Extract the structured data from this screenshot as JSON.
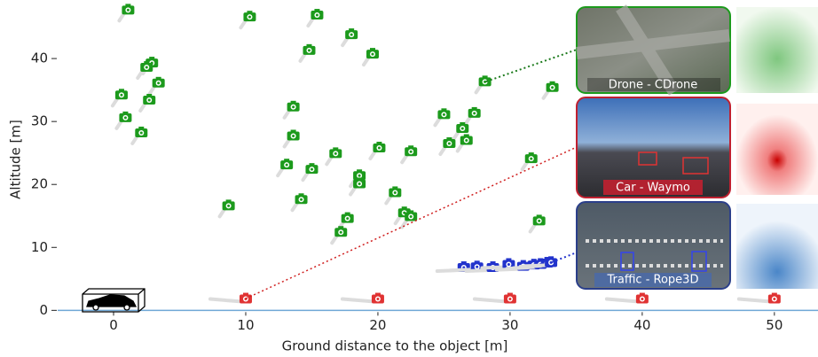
{
  "chart_data": {
    "type": "scatter",
    "x_label": "Ground distance to the object [m]",
    "y_label": "Altitude [m]",
    "xlim": [
      -4.23,
      53.3
    ],
    "ylim": [
      -1.5,
      49.3
    ],
    "xticks": [
      0,
      10,
      20,
      30,
      40,
      50
    ],
    "yticks": [
      0,
      10,
      20,
      30,
      40
    ],
    "series": [
      {
        "color": "#1c9a1c",
        "x": [
          1.1,
          10.3,
          15.4,
          18.0,
          14.8,
          19.6,
          2.9,
          2.5,
          3.4,
          0.6,
          2.7,
          0.9,
          2.1,
          28.1,
          33.2,
          13.6,
          25.0,
          27.3,
          26.4,
          13.6,
          26.7,
          25.4,
          20.1,
          22.5,
          16.8,
          31.6,
          13.1,
          15.0,
          18.6,
          18.6,
          21.3,
          14.2,
          8.7,
          22.0,
          22.5,
          17.7,
          32.2,
          17.2
        ],
        "values": [
          47.7,
          46.6,
          46.9,
          43.8,
          41.3,
          40.7,
          39.3,
          38.6,
          36.1,
          34.2,
          33.4,
          30.6,
          28.2,
          36.3,
          35.4,
          32.3,
          31.1,
          31.3,
          28.9,
          27.7,
          27.0,
          26.5,
          25.8,
          25.2,
          24.9,
          24.1,
          23.1,
          22.4,
          21.4,
          20.1,
          18.7,
          17.6,
          16.6,
          15.5,
          14.9,
          14.6,
          14.2,
          12.4
        ]
      },
      {
        "color": "#e03333",
        "x": [
          10,
          20,
          30,
          40,
          50
        ],
        "values": [
          1.8,
          1.8,
          1.8,
          1.8,
          1.8
        ]
      },
      {
        "color": "#2233cc",
        "x": [
          26.5,
          27.5,
          28.7,
          29.9,
          31.0,
          31.8,
          32.3,
          32.8,
          33.1
        ],
        "values": [
          6.8,
          6.9,
          6.8,
          7.3,
          7.0,
          7.2,
          7.3,
          7.5,
          7.6
        ]
      }
    ]
  },
  "insets": [
    "Drone - CDrone",
    "Car - Waymo",
    "Traffic  - Rope3D"
  ]
}
